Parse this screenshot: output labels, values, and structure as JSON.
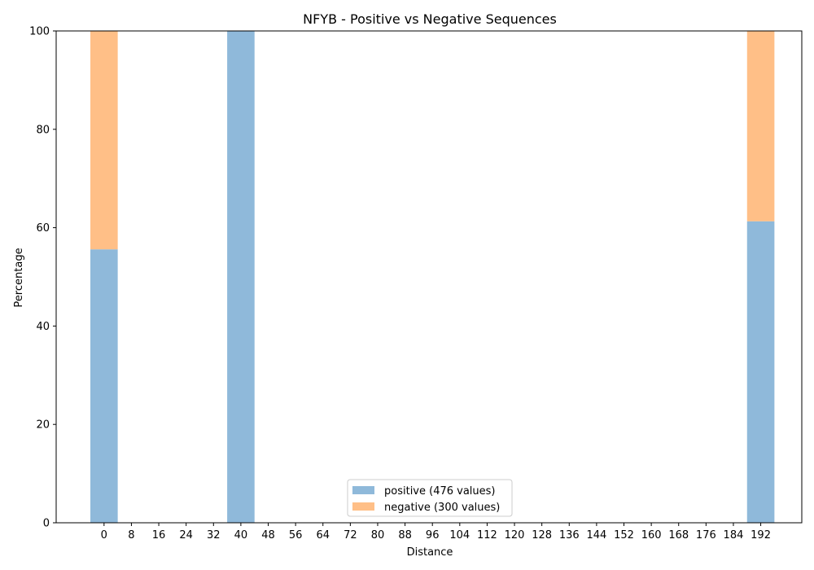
{
  "chart_data": {
    "type": "bar",
    "stacked": true,
    "title": "NFYB - Positive vs Negative Sequences",
    "xlabel": "Distance",
    "ylabel": "Percentage",
    "ylim": [
      0,
      100
    ],
    "xlim": [
      -14,
      204
    ],
    "bar_width": 8,
    "x_ticks": [
      0,
      8,
      16,
      24,
      32,
      40,
      48,
      56,
      64,
      72,
      80,
      88,
      96,
      104,
      112,
      120,
      128,
      136,
      144,
      152,
      160,
      168,
      176,
      184,
      192
    ],
    "y_ticks": [
      0,
      20,
      40,
      60,
      80,
      100
    ],
    "grid": false,
    "legend_position": "bottom-center",
    "x": [
      0,
      40,
      192
    ],
    "series": [
      {
        "name": "positive (476 values)",
        "color": "#8fb9da",
        "values": [
          55.6,
          100,
          61.3
        ]
      },
      {
        "name": "negative (300 values)",
        "color": "#ffbf87",
        "values": [
          44.4,
          0,
          38.7
        ]
      }
    ]
  }
}
